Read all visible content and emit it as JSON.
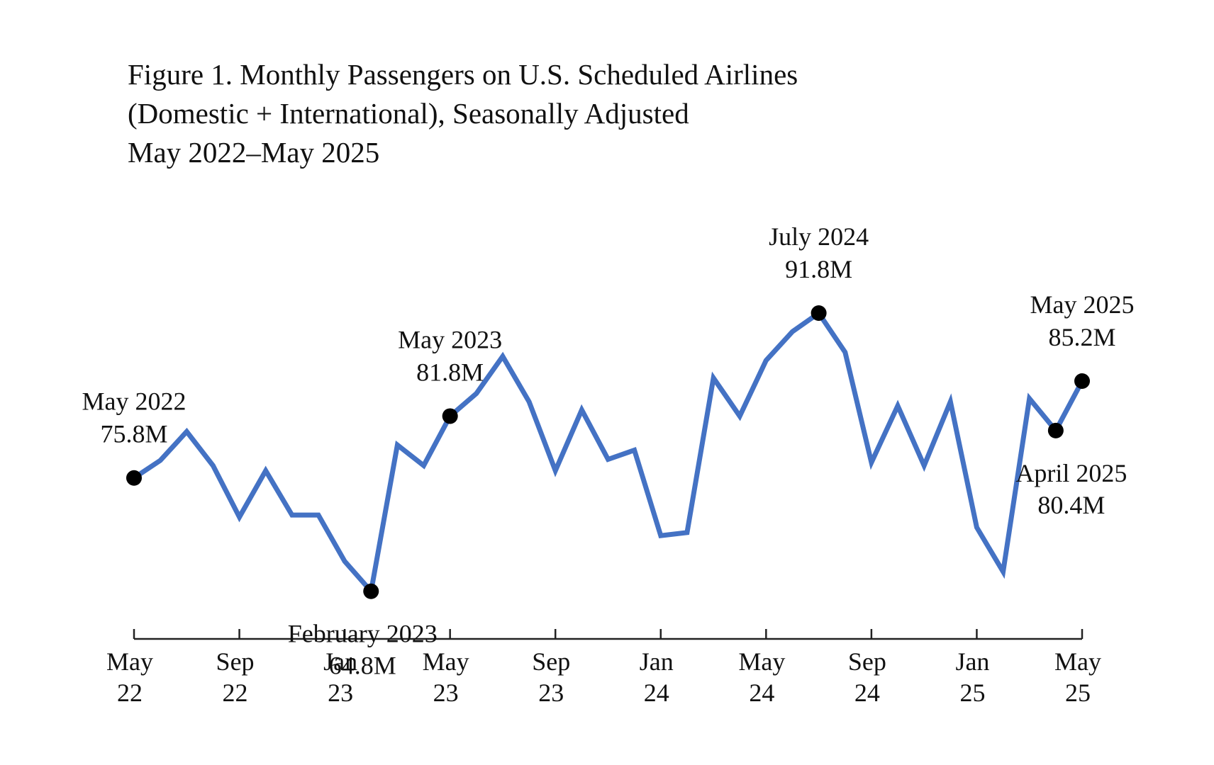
{
  "chart_data": {
    "type": "line",
    "title": [
      "Figure 1. Monthly Passengers on U.S. Scheduled Airlines",
      "(Domestic + International), Seasonally Adjusted",
      "May 2022–May 2025"
    ],
    "xlabel": "",
    "ylabel": "",
    "y_unit": "millions of passengers",
    "grid": false,
    "legend": "none",
    "ylim": [
      50,
      105
    ],
    "x": [
      "May 2022",
      "Jun 2022",
      "Jul 2022",
      "Aug 2022",
      "Sep 2022",
      "Oct 2022",
      "Nov 2022",
      "Dec 2022",
      "Jan 2023",
      "Feb 2023",
      "Mar 2023",
      "Apr 2023",
      "May 2023",
      "Jun 2023",
      "Jul 2023",
      "Aug 2023",
      "Sep 2023",
      "Oct 2023",
      "Nov 2023",
      "Dec 2023",
      "Jan 2024",
      "Feb 2024",
      "Mar 2024",
      "Apr 2024",
      "May 2024",
      "Jun 2024",
      "Jul 2024",
      "Aug 2024",
      "Sep 2024",
      "Oct 2024",
      "Nov 2024",
      "Dec 2024",
      "Jan 2025",
      "Feb 2025",
      "Mar 2025",
      "Apr 2025",
      "May 2025"
    ],
    "series": [
      {
        "name": "Monthly passengers",
        "color": "#4472c4",
        "values": [
          75.8,
          77.5,
          80.3,
          77.0,
          72.0,
          76.5,
          72.2,
          72.2,
          67.7,
          64.8,
          79.0,
          77.0,
          81.8,
          84.0,
          87.6,
          83.2,
          76.5,
          82.4,
          77.6,
          78.5,
          70.2,
          70.5,
          85.5,
          81.8,
          87.2,
          90.0,
          91.8,
          88.0,
          77.3,
          82.8,
          77.0,
          83.2,
          71.0,
          66.7,
          83.5,
          80.4,
          85.2
        ]
      }
    ],
    "x_ticks": [
      {
        "index": 0,
        "line1": "May",
        "line2": "22"
      },
      {
        "index": 4,
        "line1": "Sep",
        "line2": "22"
      },
      {
        "index": 8,
        "line1": "Jan",
        "line2": "23"
      },
      {
        "index": 12,
        "line1": "May",
        "line2": "23"
      },
      {
        "index": 16,
        "line1": "Sep",
        "line2": "23"
      },
      {
        "index": 20,
        "line1": "Jan",
        "line2": "24"
      },
      {
        "index": 24,
        "line1": "May",
        "line2": "24"
      },
      {
        "index": 28,
        "line1": "Sep",
        "line2": "24"
      },
      {
        "index": 32,
        "line1": "Jan",
        "line2": "25"
      },
      {
        "index": 36,
        "line1": "May",
        "line2": "25"
      }
    ],
    "annotations": [
      {
        "index": 0,
        "label": "May 2022",
        "value": "75.8M",
        "position": "above"
      },
      {
        "index": 9,
        "label": "February 2023",
        "value": "64.8M",
        "position": "below"
      },
      {
        "index": 12,
        "label": "May 2023",
        "value": "81.8M",
        "position": "above"
      },
      {
        "index": 26,
        "label": "July 2024",
        "value": "91.8M",
        "position": "above"
      },
      {
        "index": 35,
        "label": "April 2025",
        "value": "80.4M",
        "position": "below"
      },
      {
        "index": 36,
        "label": "May 2025",
        "value": "85.2M",
        "position": "above"
      }
    ],
    "marker_color": "#000000",
    "axis_color": "#222222"
  }
}
